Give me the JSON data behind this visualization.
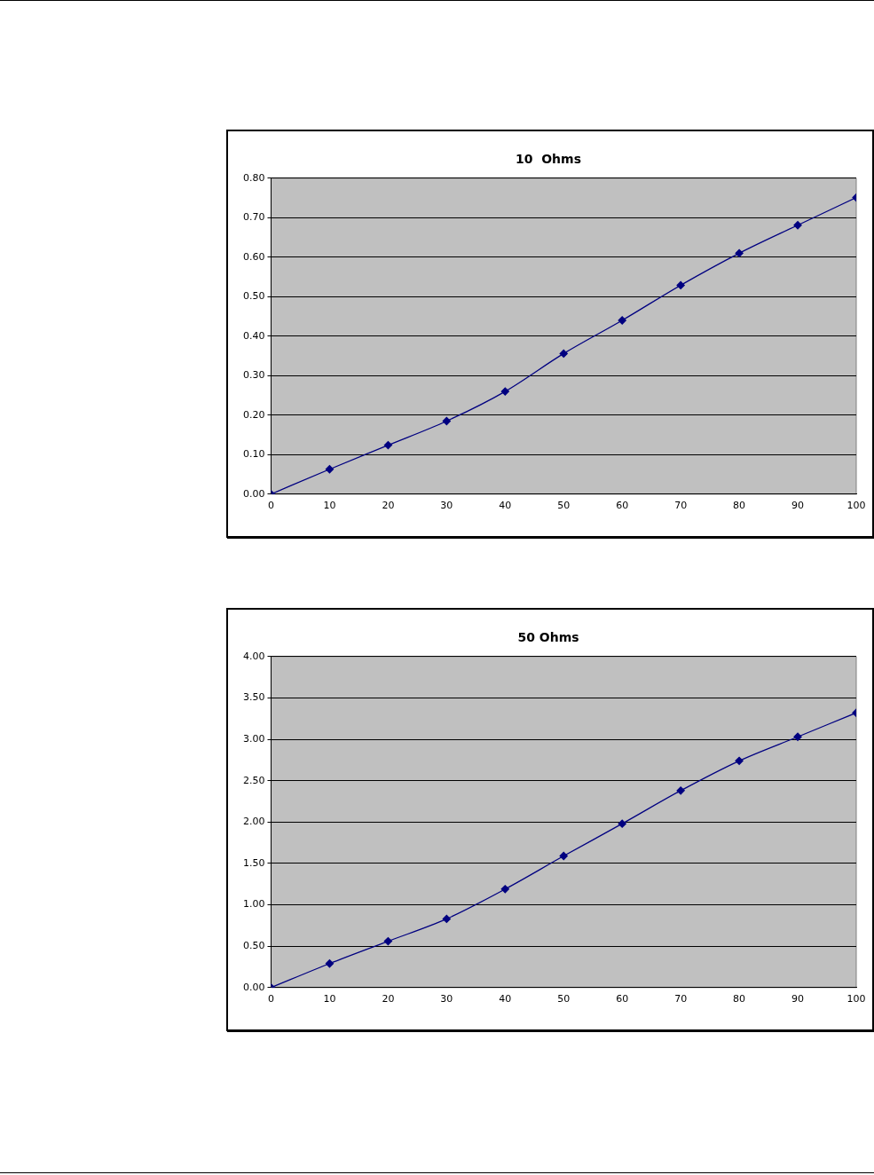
{
  "chart_data": [
    {
      "type": "line",
      "title": "10  Ohms",
      "x": [
        0,
        10,
        20,
        30,
        40,
        50,
        60,
        70,
        80,
        90,
        100
      ],
      "series": [
        {
          "color": "#000080",
          "values": [
            0,
            0.063,
            0.124,
            0.185,
            0.26,
            0.356,
            0.44,
            0.529,
            0.61,
            0.681,
            0.751
          ]
        }
      ],
      "xlim": [
        0,
        100
      ],
      "xticks": [
        0,
        10,
        20,
        30,
        40,
        50,
        60,
        70,
        80,
        90,
        100
      ],
      "ylim": [
        0,
        0.8
      ],
      "yticks": [
        {
          "value": 0,
          "label": "0.00"
        },
        {
          "value": 0.1,
          "label": "0.10"
        },
        {
          "value": 0.2,
          "label": "0.20"
        },
        {
          "value": 0.3,
          "label": "0.30"
        },
        {
          "value": 0.4,
          "label": "0.40"
        },
        {
          "value": 0.5,
          "label": "0.50"
        },
        {
          "value": 0.6,
          "label": "0.60"
        },
        {
          "value": 0.7,
          "label": "0.70"
        },
        {
          "value": 0.8,
          "label": "0.80"
        }
      ],
      "grid": "y",
      "marker": "diamond",
      "line_style": "solid",
      "legend": false
    },
    {
      "type": "line",
      "title": "50 Ohms",
      "x": [
        0,
        10,
        20,
        30,
        40,
        50,
        60,
        70,
        80,
        90,
        100
      ],
      "series": [
        {
          "color": "#000080",
          "values": [
            0,
            0.29,
            0.56,
            0.83,
            1.19,
            1.59,
            1.98,
            2.38,
            2.74,
            3.03,
            3.32
          ]
        }
      ],
      "xlim": [
        0,
        100
      ],
      "xticks": [
        0,
        10,
        20,
        30,
        40,
        50,
        60,
        70,
        80,
        90,
        100
      ],
      "ylim": [
        0,
        4
      ],
      "yticks": [
        {
          "value": 0,
          "label": "0.00"
        },
        {
          "value": 0.5,
          "label": "0.50"
        },
        {
          "value": 1,
          "label": "1.00"
        },
        {
          "value": 1.5,
          "label": "1.50"
        },
        {
          "value": 2,
          "label": "2.00"
        },
        {
          "value": 2.5,
          "label": "2.50"
        },
        {
          "value": 3,
          "label": "3.00"
        },
        {
          "value": 3.5,
          "label": "3.50"
        },
        {
          "value": 4,
          "label": "4.00"
        }
      ],
      "grid": "y",
      "marker": "diamond",
      "line_style": "solid",
      "legend": false
    }
  ]
}
